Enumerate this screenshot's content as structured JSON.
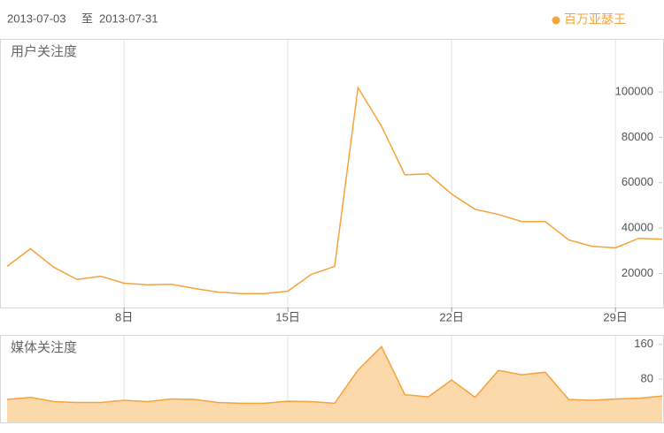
{
  "header": {
    "start": "2013-07-03",
    "separator": "至",
    "end": "2013-07-31"
  },
  "chart_data": [
    {
      "type": "line",
      "title": "用户关注度",
      "x": [
        3,
        4,
        5,
        6,
        7,
        8,
        9,
        10,
        11,
        12,
        13,
        14,
        15,
        16,
        17,
        18,
        19,
        20,
        21,
        22,
        23,
        24,
        25,
        26,
        27,
        28,
        29,
        30,
        31
      ],
      "series": [
        {
          "name": "百万亚瑟王",
          "color": "#f5a33a",
          "values": [
            23100,
            30900,
            22700,
            17300,
            18800,
            15700,
            15000,
            15300,
            13400,
            11800,
            11100,
            11100,
            12200,
            19600,
            23100,
            101900,
            84900,
            63500,
            63900,
            55000,
            48300,
            46000,
            42900,
            42900,
            34800,
            32000,
            31300,
            35500,
            35100
          ]
        }
      ],
      "xlim": [
        3,
        31
      ],
      "xticks": [
        {
          "value": 8,
          "label": "8日"
        },
        {
          "value": 15,
          "label": "15日"
        },
        {
          "value": 22,
          "label": "22日"
        },
        {
          "value": 29,
          "label": "29日"
        }
      ],
      "ylim": [
        5000,
        123000
      ],
      "yticks": [
        20000,
        40000,
        60000,
        80000,
        100000
      ],
      "legend": "top-right"
    },
    {
      "type": "area",
      "title": "媒体关注度",
      "x": [
        3,
        4,
        5,
        6,
        7,
        8,
        9,
        10,
        11,
        12,
        13,
        14,
        15,
        16,
        17,
        18,
        19,
        20,
        21,
        22,
        23,
        24,
        25,
        26,
        27,
        28,
        29,
        30,
        31
      ],
      "series": [
        {
          "color": "#f5a33a",
          "fill": "#fbd9ab",
          "values": [
            33,
            38,
            28,
            26,
            26,
            31,
            28,
            34,
            33,
            26,
            24,
            24,
            29,
            28,
            24,
            101,
            155,
            44,
            39,
            78,
            38,
            100,
            90,
            96,
            33,
            31,
            34,
            36,
            41
          ]
        }
      ],
      "xlim": [
        3,
        31
      ],
      "ylim": [
        -20,
        180
      ],
      "yticks": [
        80,
        160
      ]
    }
  ]
}
